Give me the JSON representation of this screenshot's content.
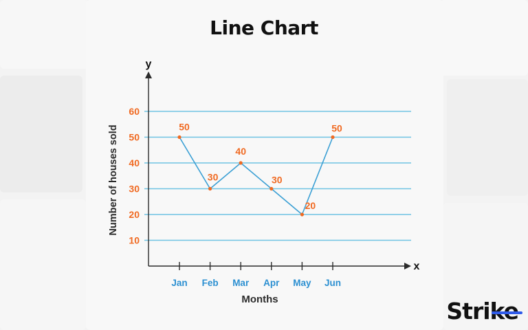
{
  "title": "Line Chart",
  "brand": {
    "name_main": "Stri",
    "name_tail": "ke",
    "accent_color": "#2f5bea"
  },
  "colors": {
    "axis": "#2b2b2b",
    "grid": "#6fc3e3",
    "line": "#3a9fd4",
    "point": "#f06a22",
    "label": "#f06a22",
    "x_tick": "#2b8fd1"
  },
  "chart_data": {
    "type": "line",
    "categories": [
      "Jan",
      "Feb",
      "Mar",
      "Apr",
      "May",
      "Jun"
    ],
    "values": [
      50,
      30,
      40,
      30,
      20,
      50
    ],
    "data_labels": [
      "50",
      "30",
      "40",
      "30",
      "20",
      "50"
    ],
    "yticks": [
      10,
      20,
      30,
      40,
      50,
      60
    ],
    "ylim": [
      0,
      60
    ],
    "xlabel": "Months",
    "ylabel": "Number of houses sold",
    "x_axis_letter": "x",
    "y_axis_letter": "y",
    "grid": true,
    "legend": false
  }
}
